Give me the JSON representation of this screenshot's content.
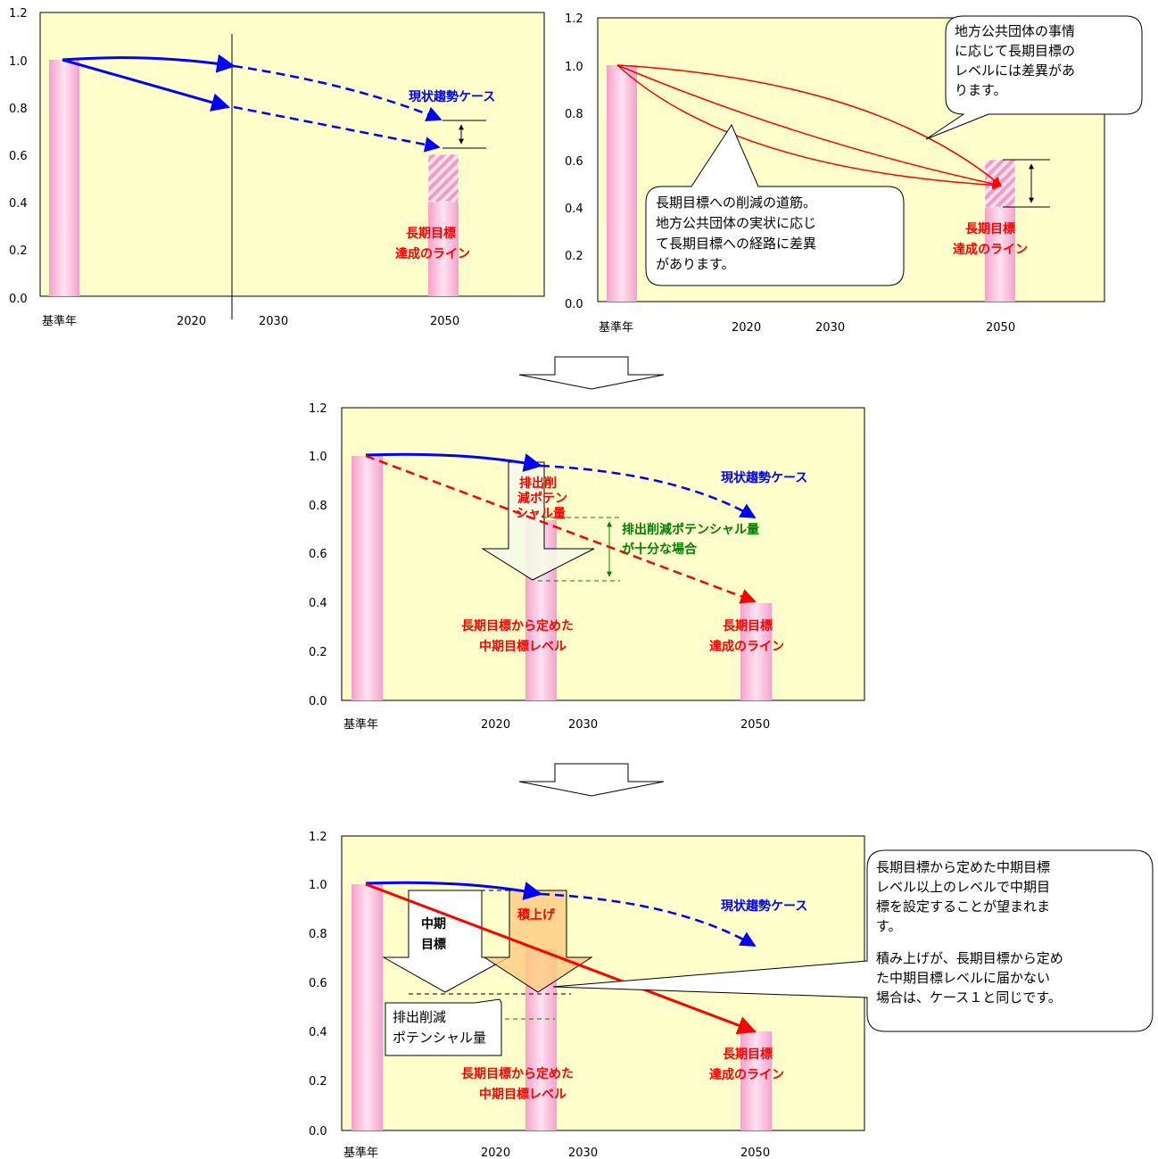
{
  "chart_data": [
    {
      "type": "line",
      "y_ticks": [
        "0.0",
        "0.2",
        "0.4",
        "0.6",
        "0.8",
        "1.0",
        "1.2"
      ],
      "ylim": [
        0,
        1.2
      ],
      "x_ticks": [
        "基準年",
        "2020",
        "2030",
        "2050"
      ],
      "series": [
        {
          "name": "現状趨勢ケース",
          "points": [
            [
              0,
              1.0
            ],
            [
              0.5,
              1.0
            ],
            [
              1,
              0.97
            ],
            [
              1.5,
              0.87
            ],
            [
              2,
              0.75
            ]
          ]
        },
        {
          "points": [
            [
              0,
              1.0
            ],
            [
              1,
              0.81
            ],
            [
              2,
              0.63
            ]
          ]
        }
      ],
      "bars": [
        {
          "x": "基準年",
          "value": 1.0
        },
        {
          "x": "2050",
          "value": 0.4,
          "range_top": 0.6
        }
      ],
      "labels": {
        "trend": "現状趨勢ケース",
        "target": [
          "長期目標",
          "達成のライン"
        ]
      }
    },
    {
      "type": "line",
      "y_ticks": [
        "0.0",
        "0.2",
        "0.4",
        "0.6",
        "0.8",
        "1.0",
        "1.2"
      ],
      "ylim": [
        0,
        1.2
      ],
      "x_ticks": [
        "基準年",
        "2020",
        "2030",
        "2050"
      ],
      "bars": [
        {
          "x": "基準年",
          "value": 1.0
        },
        {
          "x": "2050",
          "value": 0.4,
          "range_top": 0.6
        }
      ],
      "labels": {
        "target": [
          "長期目標",
          "達成のライン"
        ]
      },
      "callouts": [
        [
          "地方公共団体の事情",
          "に応じて長期目標の",
          "レベルには差異があ",
          "ります。"
        ],
        [
          "長期目標への削減の道筋。",
          "地方公共団体の実状に応じ",
          "て長期目標への経路に差異",
          "があります。"
        ]
      ]
    },
    {
      "type": "line",
      "y_ticks": [
        "0.0",
        "0.2",
        "0.4",
        "0.6",
        "0.8",
        "1.0",
        "1.2"
      ],
      "ylim": [
        0,
        1.2
      ],
      "x_ticks": [
        "基準年",
        "2020",
        "2030",
        "2050"
      ],
      "series": [
        {
          "name": "現状趨勢ケース",
          "points": [
            [
              0,
              1.0
            ],
            [
              1,
              0.97
            ],
            [
              2,
              0.74
            ]
          ]
        },
        {
          "points": [
            [
              0,
              1.0
            ],
            [
              2,
              0.4
            ]
          ]
        }
      ],
      "bars": [
        {
          "x": "基準年",
          "value": 1.0
        },
        {
          "x": "2025",
          "value": 0.73
        },
        {
          "x": "2050",
          "value": 0.4
        }
      ],
      "labels": {
        "trend": "現状趨勢ケース",
        "arrow": [
          "排出削",
          "減ポテン",
          "シャル量"
        ],
        "potential": [
          "排出削減ポテンシャル量",
          "が十分な場合"
        ],
        "mid": [
          "長期目標から定めた",
          "中期目標レベル"
        ],
        "target": [
          "長期目標",
          "達成のライン"
        ]
      }
    },
    {
      "type": "line",
      "y_ticks": [
        "0.0",
        "0.2",
        "0.4",
        "0.6",
        "0.8",
        "1.0",
        "1.2"
      ],
      "ylim": [
        0,
        1.2
      ],
      "x_ticks": [
        "基準年",
        "2020",
        "2030",
        "2050"
      ],
      "series": [
        {
          "name": "現状趨勢ケース",
          "points": [
            [
              0,
              1.0
            ],
            [
              1,
              0.97
            ],
            [
              2,
              0.74
            ]
          ]
        },
        {
          "points": [
            [
              0,
              1.0
            ],
            [
              2,
              0.4
            ]
          ]
        }
      ],
      "bars": [
        {
          "x": "基準年",
          "value": 1.0
        },
        {
          "x": "2025",
          "value": 0.73
        },
        {
          "x": "2050",
          "value": 0.4
        }
      ],
      "labels": {
        "trend": "現状趨勢ケース",
        "mid_arrow": [
          "中期",
          "目標"
        ],
        "stack": "積上げ",
        "potential_box": [
          "排出削減",
          "ポテンシャル量"
        ],
        "mid": [
          "長期目標から定めた",
          "中期目標レベル"
        ],
        "target": [
          "長期目標",
          "達成のライン"
        ]
      },
      "callouts": [
        [
          "長期目標から定めた中期目標",
          "レベル以上のレベルで中期目",
          "標を設定することが望まれま",
          "す。",
          "積み上げが、長期目標から定め",
          "た中期目標レベルに届かない",
          "場合は、ケース１と同じです。"
        ]
      ]
    }
  ]
}
